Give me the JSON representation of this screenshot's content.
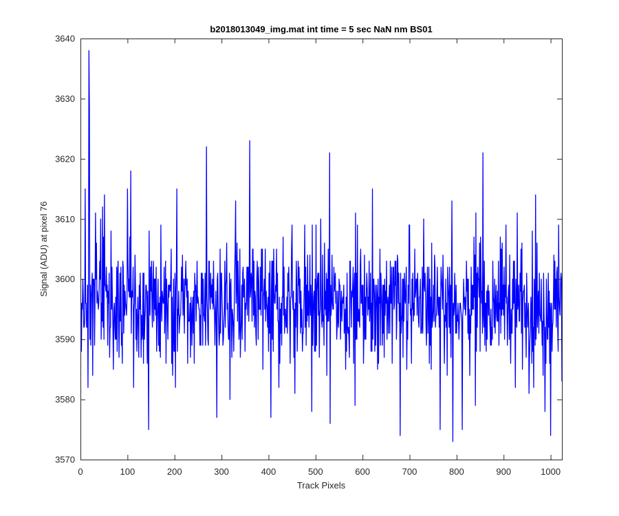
{
  "chart_data": {
    "type": "line",
    "title": "b2018013049_img.mat int time = 5 sec  NaN nm BS01",
    "xlabel": "Track Pixels",
    "ylabel": "Signal (ADU) at pixel 76",
    "xlim": [
      0,
      1024
    ],
    "ylim": [
      3570,
      3640
    ],
    "xticks": [
      0,
      100,
      200,
      300,
      400,
      500,
      600,
      700,
      800,
      900,
      1000
    ],
    "xtick_labels": [
      "0",
      "100",
      "200",
      "300",
      "400",
      "500",
      "600",
      "700",
      "800",
      "900",
      "1000"
    ],
    "yticks": [
      3570,
      3580,
      3590,
      3600,
      3610,
      3620,
      3630,
      3640
    ],
    "ytick_labels": [
      "3570",
      "3580",
      "3590",
      "3600",
      "3610",
      "3620",
      "3630",
      "3640"
    ],
    "grid": false,
    "series": [
      {
        "color": "#0000ff",
        "x_start": 1,
        "x_step": 1,
        "baseline": 3596,
        "spread": 6.5,
        "peaks": [
          [
            18,
            3638
          ],
          [
            19,
            3628
          ],
          [
            10,
            3615
          ],
          [
            51,
            3614
          ],
          [
            107,
            3618
          ],
          [
            100,
            3615
          ],
          [
            268,
            3622
          ],
          [
            205,
            3615
          ],
          [
            360,
            3623
          ],
          [
            530,
            3621
          ],
          [
            621,
            3615
          ],
          [
            790,
            3613
          ],
          [
            856,
            3621
          ],
          [
            968,
            3614
          ],
          [
            1017,
            3609
          ],
          [
            330,
            3613
          ],
          [
            450,
            3609
          ],
          [
            585,
            3611
          ],
          [
            700,
            3609
          ],
          [
            730,
            3610
          ]
        ],
        "troughs": [
          [
            145,
            3575
          ],
          [
            290,
            3577
          ],
          [
            405,
            3577
          ],
          [
            492,
            3578
          ],
          [
            531,
            3576
          ],
          [
            680,
            3574
          ],
          [
            765,
            3575
          ],
          [
            792,
            3573
          ],
          [
            812,
            3575
          ],
          [
            1000,
            3574
          ],
          [
            113,
            3582
          ],
          [
            202,
            3582
          ],
          [
            318,
            3580
          ],
          [
            584,
            3579
          ],
          [
            988,
            3578
          ],
          [
            26,
            3584
          ],
          [
            840,
            3579
          ],
          [
            925,
            3582
          ]
        ],
        "count": 1024,
        "seed": 76
      }
    ]
  }
}
